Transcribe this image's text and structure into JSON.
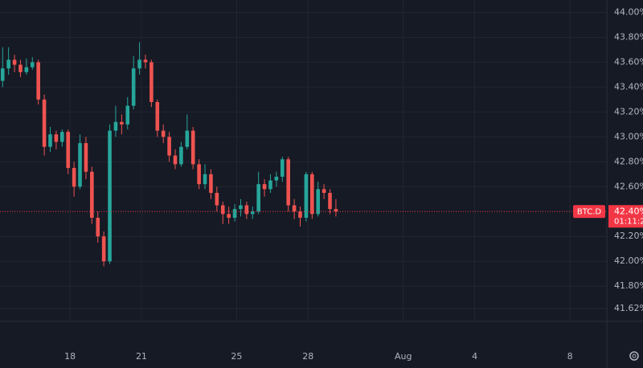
{
  "chart_data": {
    "type": "candlestick",
    "x": [
      15.17,
      15.42,
      15.67,
      15.92,
      16.17,
      16.42,
      16.67,
      16.92,
      17.17,
      17.42,
      17.67,
      17.92,
      18.17,
      18.42,
      18.67,
      18.92,
      19.17,
      19.42,
      19.67,
      19.92,
      20.17,
      20.42,
      20.67,
      20.92,
      21.17,
      21.42,
      21.67,
      21.92,
      22.17,
      22.42,
      22.67,
      22.92,
      23.17,
      23.42,
      23.67,
      23.92,
      24.17,
      24.42,
      24.67,
      24.92,
      25.17,
      25.42,
      25.67,
      25.92,
      26.17,
      26.42,
      26.67,
      26.92,
      27.17,
      27.42,
      27.67,
      27.92,
      28.17,
      28.42,
      28.67,
      28.92,
      29.17
    ],
    "open": [
      43.45,
      43.55,
      43.62,
      43.58,
      43.52,
      43.56,
      43.6,
      43.3,
      42.92,
      43.02,
      42.96,
      43.04,
      42.75,
      42.6,
      42.95,
      42.72,
      42.35,
      42.2,
      42.0,
      43.05,
      43.12,
      43.1,
      43.25,
      43.55,
      43.62,
      43.6,
      43.28,
      43.05,
      43.0,
      42.85,
      42.78,
      42.92,
      43.05,
      42.78,
      42.62,
      42.7,
      42.55,
      42.45,
      42.38,
      42.35,
      42.42,
      42.45,
      42.38,
      42.4,
      42.62,
      42.58,
      42.65,
      42.68,
      42.82,
      42.45,
      42.4,
      42.35,
      42.7,
      42.38,
      42.58,
      42.55,
      42.42
    ],
    "high": [
      43.72,
      43.72,
      43.66,
      43.62,
      43.63,
      43.64,
      43.62,
      43.34,
      43.08,
      43.05,
      43.06,
      43.06,
      42.8,
      43.02,
      43.0,
      42.76,
      42.4,
      42.24,
      43.1,
      43.25,
      43.18,
      43.32,
      43.65,
      43.76,
      43.66,
      43.62,
      43.3,
      43.1,
      43.04,
      42.9,
      42.96,
      43.18,
      43.08,
      42.82,
      42.78,
      42.74,
      42.6,
      42.48,
      42.44,
      42.46,
      42.5,
      42.48,
      42.44,
      42.72,
      42.66,
      42.7,
      42.72,
      42.84,
      42.84,
      42.5,
      42.44,
      42.72,
      42.72,
      42.64,
      42.62,
      42.58,
      42.5
    ],
    "low": [
      43.4,
      43.5,
      43.52,
      43.48,
      43.5,
      43.54,
      43.26,
      42.85,
      42.88,
      42.9,
      42.92,
      42.7,
      42.52,
      42.58,
      42.66,
      42.3,
      42.15,
      41.96,
      41.98,
      43.0,
      43.02,
      43.06,
      43.22,
      43.5,
      43.55,
      43.24,
      43.0,
      42.95,
      42.8,
      42.74,
      42.76,
      42.9,
      42.74,
      42.58,
      42.58,
      42.5,
      42.4,
      42.3,
      42.3,
      42.32,
      42.36,
      42.34,
      42.34,
      42.38,
      42.52,
      42.55,
      42.6,
      42.64,
      42.4,
      42.34,
      42.28,
      42.32,
      42.34,
      42.36,
      42.5,
      42.38,
      42.36
    ],
    "close": [
      43.55,
      43.62,
      43.58,
      43.52,
      43.56,
      43.6,
      43.3,
      42.92,
      43.02,
      42.96,
      43.04,
      42.75,
      42.6,
      42.95,
      42.72,
      42.35,
      42.2,
      42.0,
      43.05,
      43.12,
      43.1,
      43.25,
      43.55,
      43.62,
      43.6,
      43.28,
      43.05,
      43.0,
      42.85,
      42.78,
      42.92,
      43.05,
      42.78,
      42.62,
      42.7,
      42.55,
      42.45,
      42.38,
      42.35,
      42.42,
      42.45,
      42.38,
      42.4,
      42.62,
      42.58,
      42.65,
      42.68,
      42.82,
      42.45,
      42.4,
      42.35,
      42.7,
      42.38,
      42.58,
      42.55,
      42.42,
      42.4
    ],
    "up_color": "#26a69a",
    "down_color": "#ef5350",
    "xlim": [
      15.06,
      40.55
    ],
    "xticks": [
      18,
      21,
      25,
      28,
      {
        "value": 32,
        "label": "Aug"
      },
      {
        "value": 35,
        "label": "4"
      },
      {
        "value": 39,
        "label": "8"
      }
    ],
    "ylim": [
      41.53,
      44.1
    ],
    "yticks": [
      {
        "value": 44.0,
        "label": "44.00%"
      },
      {
        "value": 43.8,
        "label": "43.80%"
      },
      {
        "value": 43.6,
        "label": "43.60%"
      },
      {
        "value": 43.4,
        "label": "43.40%"
      },
      {
        "value": 43.2,
        "label": "43.20%"
      },
      {
        "value": 43.0,
        "label": "43.00%"
      },
      {
        "value": 42.8,
        "label": "42.80%"
      },
      {
        "value": 42.6,
        "label": "42.60%"
      },
      {
        "value": 42.2,
        "label": "42.20%"
      },
      {
        "value": 42.0,
        "label": "42.00%"
      },
      {
        "value": 41.8,
        "label": "41.80%"
      },
      {
        "value": 41.62,
        "label": "41.62%"
      }
    ],
    "grid": true,
    "last_price": {
      "value": 42.4,
      "label": "42.40%"
    },
    "symbol": "BTC.D",
    "countdown": "01:11:2",
    "price_color": "#f23645"
  }
}
